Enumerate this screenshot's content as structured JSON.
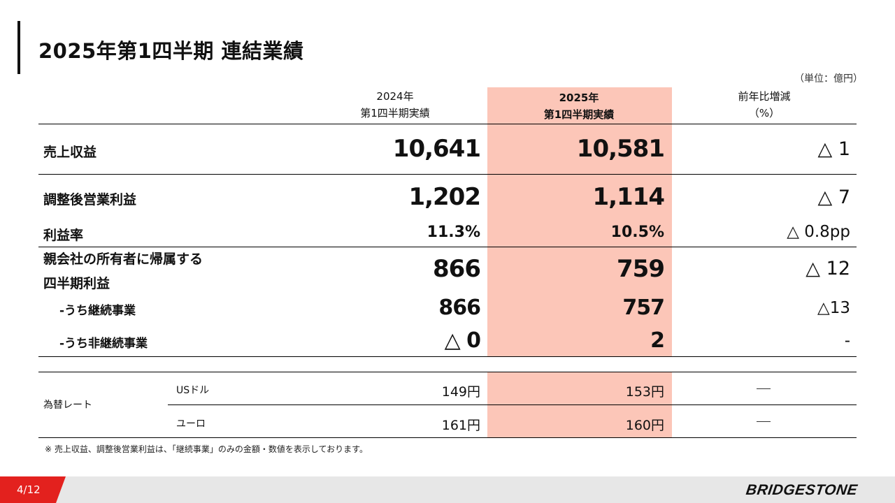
{
  "title": "2025年第1四半期 連結業績",
  "unit": "（単位：億円）",
  "headers": {
    "col1_line1": "2024年",
    "col1_line2": "第1四半期実績",
    "col2_line1": "2025年",
    "col2_line2": "第1四半期実績",
    "col3_line1": "前年比増減",
    "col3_line2": "（%）"
  },
  "rows": {
    "revenue": {
      "label": "売上収益",
      "v2024": "10,641",
      "v2025": "10,581",
      "change": "△ 1"
    },
    "adj_op_profit": {
      "label": "調整後営業利益",
      "v2024": "1,202",
      "v2025": "1,114",
      "change": "△ 7"
    },
    "margin": {
      "label": "利益率",
      "v2024": "11.3%",
      "v2025": "10.5%",
      "change": "△ 0.8pp"
    },
    "net_profit": {
      "label_line1": "親会社の所有者に帰属する",
      "label_line2": "四半期利益",
      "v2024": "866",
      "v2025": "759",
      "change": "△ 12"
    },
    "continuing": {
      "label": "-うち継続事業",
      "v2024": "866",
      "v2025": "757",
      "change": "△13"
    },
    "discontinued": {
      "label": "-うち非継続事業",
      "v2024": "△ 0",
      "v2025": "2",
      "change": "-"
    }
  },
  "fx": {
    "label": "為替レート",
    "usd": {
      "currency": "USドル",
      "v2024": "149円",
      "v2025": "153円",
      "change": "—"
    },
    "eur": {
      "currency": "ユーロ",
      "v2024": "161円",
      "v2025": "160円",
      "change": "—"
    }
  },
  "note": "※ 売上収益、調整後営業利益は、「継続事業」のみの金額・数値を表示しております。",
  "footer": {
    "page": "4/12",
    "logo": "BRIDGESTONE"
  },
  "colors": {
    "highlight": "#fcc6b8",
    "accent": "#e3211e",
    "footer_bg": "#e7e7e7"
  }
}
